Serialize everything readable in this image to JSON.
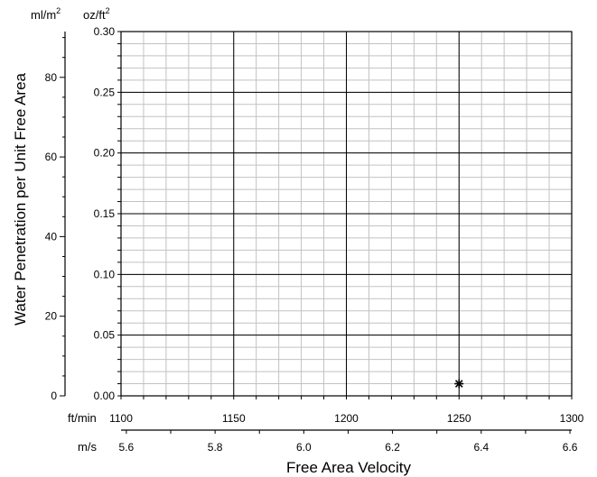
{
  "chart_data": {
    "type": "scatter",
    "title": "",
    "xlabel": "Free Area Velocity",
    "ylabel": "Water Penetration per Unit Free Area",
    "x_axis_primary": {
      "unit": "ft/min",
      "range": [
        1100,
        1300
      ],
      "major_ticks": [
        1100,
        1150,
        1200,
        1250,
        1300
      ],
      "tick_labels": [
        "1100",
        "1150",
        "1200",
        "1250",
        "1300"
      ],
      "minor_step": 10
    },
    "x_axis_secondary": {
      "unit": "m/s",
      "range": [
        5.588,
        6.604
      ],
      "major_ticks": [
        5.6,
        5.8,
        6.0,
        6.2,
        6.4,
        6.6
      ],
      "tick_labels": [
        "5.6",
        "5.8",
        "6.0",
        "6.2",
        "6.4",
        "6.6"
      ],
      "minor_step": 0.1
    },
    "y_axis_primary": {
      "unit": "oz/ft",
      "unit_superscript": "2",
      "range": [
        0,
        0.3
      ],
      "major_ticks": [
        0,
        0.05,
        0.1,
        0.15,
        0.2,
        0.25,
        0.3
      ],
      "tick_labels": [
        "0.00",
        "0.05",
        "0.10",
        "0.15",
        "0.20",
        "0.25",
        "0.30"
      ],
      "minor_step": 0.01
    },
    "y_axis_secondary": {
      "unit": "ml/m",
      "unit_superscript": "2",
      "range": [
        0,
        91.5
      ],
      "major_ticks": [
        0,
        20,
        40,
        60,
        80
      ],
      "tick_labels": [
        "0",
        "20",
        "40",
        "60",
        "80"
      ],
      "minor_step": 5
    },
    "grid": true,
    "series": [
      {
        "marker": "asterisk",
        "color": "#000000",
        "points": [
          {
            "x": 1250,
            "y": 0.01
          }
        ]
      }
    ]
  }
}
